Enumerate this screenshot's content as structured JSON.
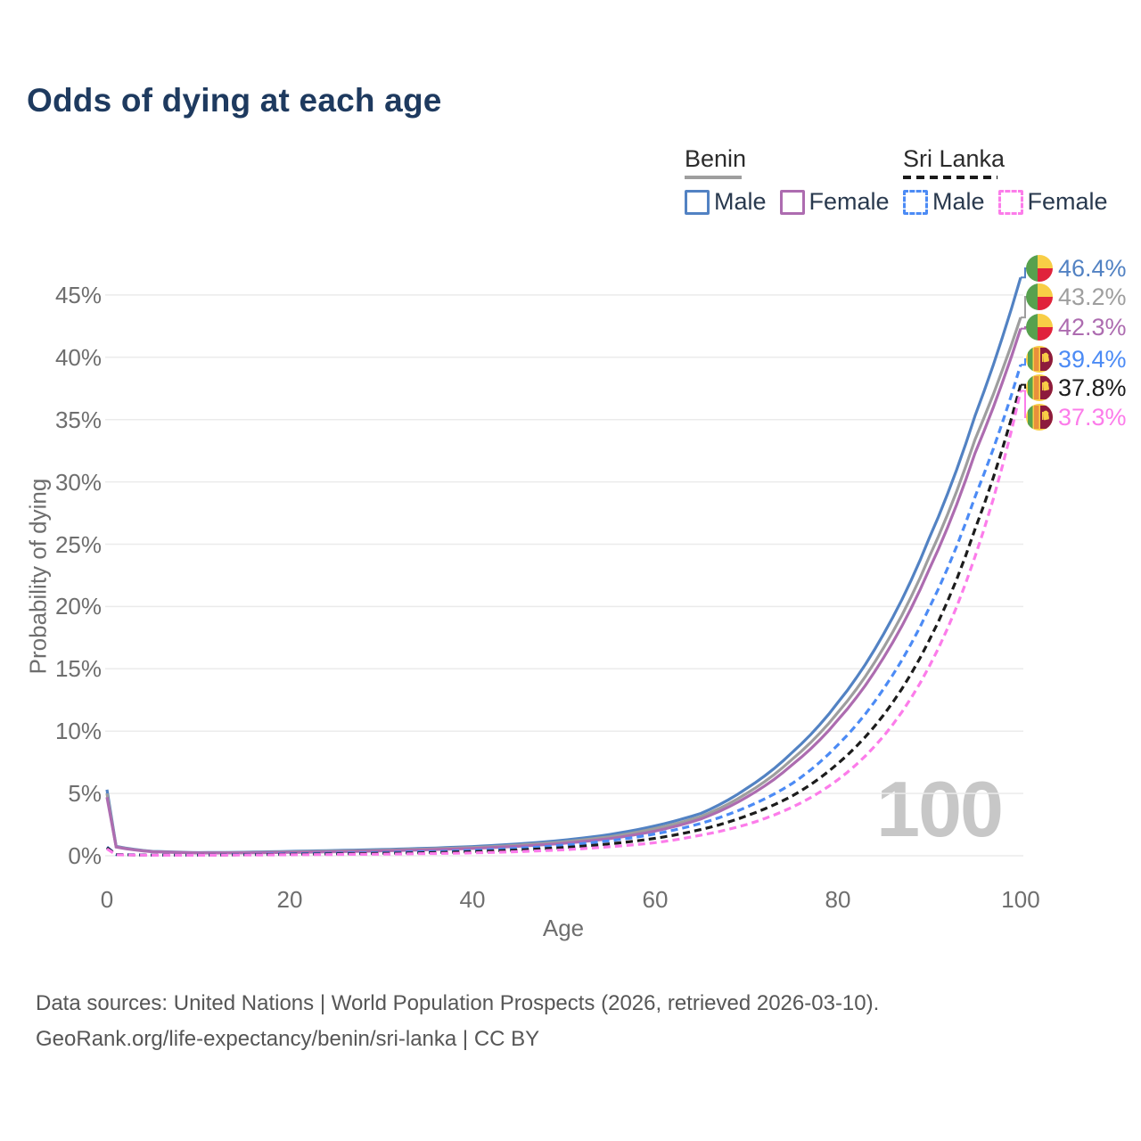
{
  "title": "Odds of dying at each age",
  "watermark": "100",
  "legend": {
    "groups": [
      {
        "country": "Benin",
        "line_style": "solid",
        "underline_color": "#9e9e9e",
        "items": [
          {
            "label": "Male",
            "color": "#5282c3"
          },
          {
            "label": "Female",
            "color": "#ad6cb0"
          }
        ]
      },
      {
        "country": "Sri Lanka",
        "line_style": "dashed",
        "underline_color": "#1a1a1a",
        "items": [
          {
            "label": "Male",
            "color": "#4c8bf5"
          },
          {
            "label": "Female",
            "color": "#fc7cea"
          }
        ]
      }
    ]
  },
  "axes": {
    "x": {
      "label": "Age",
      "range": [
        0,
        100
      ],
      "ticks": [
        {
          "value": 0,
          "label": "0"
        },
        {
          "value": 20,
          "label": "20"
        },
        {
          "value": 40,
          "label": "40"
        },
        {
          "value": 60,
          "label": "60"
        },
        {
          "value": 80,
          "label": "80"
        },
        {
          "value": 100,
          "label": "100"
        }
      ]
    },
    "y": {
      "label": "Probability of dying",
      "range_pct": [
        0,
        47.5
      ],
      "grid": true,
      "ticks": [
        {
          "value": 0,
          "label": "0%"
        },
        {
          "value": 5,
          "label": "5%"
        },
        {
          "value": 10,
          "label": "10%"
        },
        {
          "value": 15,
          "label": "15%"
        },
        {
          "value": 20,
          "label": "20%"
        },
        {
          "value": 25,
          "label": "25%"
        },
        {
          "value": 30,
          "label": "30%"
        },
        {
          "value": 35,
          "label": "35%"
        },
        {
          "value": 40,
          "label": "40%"
        },
        {
          "value": 45,
          "label": "45%"
        }
      ]
    }
  },
  "chart_data": {
    "type": "line",
    "title": "Odds of dying at each age",
    "xlabel": "Age",
    "ylabel": "Probability of dying",
    "x_ages": [
      0,
      1,
      5,
      10,
      15,
      20,
      25,
      30,
      35,
      40,
      45,
      50,
      55,
      60,
      65,
      70,
      75,
      80,
      85,
      90,
      95,
      100
    ],
    "series": [
      {
        "name": "Benin Male",
        "country": "Benin",
        "sex": "Male",
        "style": "solid",
        "color": "#5282c3",
        "flag": "benin",
        "end_label": "46.4%",
        "values_pct": [
          5.3,
          0.75,
          0.35,
          0.25,
          0.28,
          0.35,
          0.42,
          0.5,
          0.6,
          0.74,
          0.95,
          1.25,
          1.7,
          2.4,
          3.4,
          5.4,
          8.3,
          12.3,
          17.8,
          25.5,
          35.3,
          46.4
        ]
      },
      {
        "name": "Benin Both sexes",
        "country": "Benin",
        "sex": "Both",
        "style": "solid",
        "color": "#9e9e9e",
        "flag": "benin",
        "end_label": "43.2%",
        "values_pct": [
          5.0,
          0.72,
          0.33,
          0.23,
          0.25,
          0.31,
          0.37,
          0.44,
          0.54,
          0.66,
          0.85,
          1.12,
          1.52,
          2.18,
          3.15,
          5.0,
          7.75,
          11.5,
          16.7,
          24.0,
          33.4,
          43.2
        ]
      },
      {
        "name": "Benin Female",
        "country": "Benin",
        "sex": "Female",
        "style": "solid",
        "color": "#ad6cb0",
        "flag": "benin",
        "end_label": "42.3%",
        "values_pct": [
          4.7,
          0.7,
          0.32,
          0.22,
          0.23,
          0.27,
          0.32,
          0.39,
          0.48,
          0.59,
          0.76,
          1.0,
          1.37,
          1.98,
          2.95,
          4.7,
          7.3,
          10.9,
          15.9,
          23.0,
          32.3,
          42.3
        ]
      },
      {
        "name": "Sri Lanka Male",
        "country": "Sri Lanka",
        "sex": "Male",
        "style": "dashed",
        "color": "#4c8bf5",
        "flag": "sri-lanka",
        "end_label": "39.4%",
        "values_pct": [
          0.7,
          0.1,
          0.06,
          0.06,
          0.1,
          0.16,
          0.2,
          0.25,
          0.32,
          0.43,
          0.6,
          0.85,
          1.2,
          1.75,
          2.6,
          3.9,
          5.8,
          8.9,
          13.4,
          19.9,
          28.8,
          39.4
        ]
      },
      {
        "name": "Sri Lanka Both sexes",
        "country": "Sri Lanka",
        "sex": "Both",
        "style": "dashed",
        "color": "#1c1c1c",
        "flag": "sri-lanka",
        "end_label": "37.8%",
        "values_pct": [
          0.65,
          0.09,
          0.05,
          0.05,
          0.08,
          0.12,
          0.15,
          0.19,
          0.24,
          0.33,
          0.46,
          0.66,
          0.95,
          1.4,
          2.1,
          3.2,
          4.8,
          7.4,
          11.3,
          17.3,
          26.2,
          37.8
        ]
      },
      {
        "name": "Sri Lanka Female",
        "country": "Sri Lanka",
        "sex": "Female",
        "style": "dashed",
        "color": "#fc7cea",
        "flag": "sri-lanka",
        "end_label": "37.3%",
        "values_pct": [
          0.55,
          0.08,
          0.04,
          0.04,
          0.06,
          0.08,
          0.1,
          0.13,
          0.17,
          0.23,
          0.33,
          0.48,
          0.72,
          1.05,
          1.65,
          2.5,
          3.9,
          6.1,
          9.6,
          15.2,
          24.0,
          37.3
        ]
      }
    ]
  },
  "footer": {
    "line1": "Data sources: United Nations | World Population Prospects (2026, retrieved 2026-03-10).",
    "line2": "GeoRank.org/life-expectancy/benin/sri-lanka | CC BY"
  }
}
